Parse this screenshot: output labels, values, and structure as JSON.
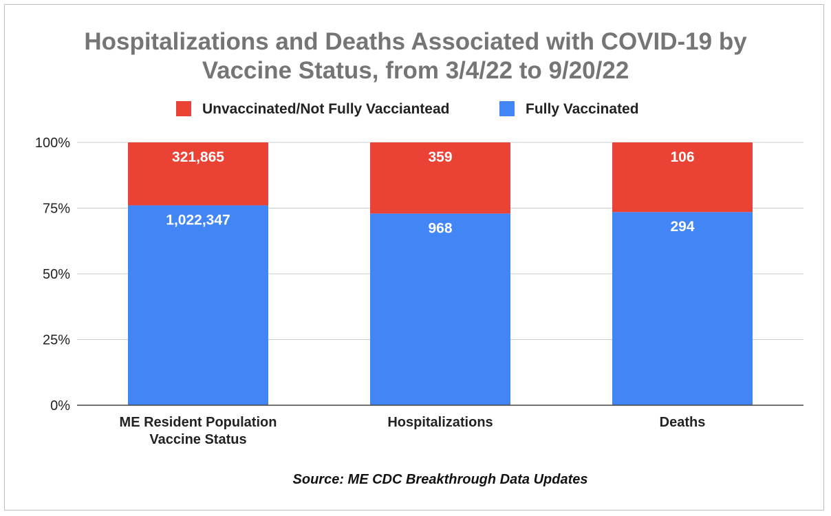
{
  "chart_data": {
    "type": "bar",
    "stacked": "percent",
    "title_lines": [
      "Hospitalizations and Deaths Associated with COVID-19 by",
      "Vaccine Status, from 3/4/22 to 9/20/22"
    ],
    "categories": [
      [
        "ME Resident Population",
        "Vaccine Status"
      ],
      [
        "Hospitalizations"
      ],
      [
        "Deaths"
      ]
    ],
    "series": [
      {
        "name": "Fully Vaccinated",
        "color": "#4285f4",
        "values": [
          1022347,
          968,
          294
        ],
        "labels": [
          "1,022,347",
          "968",
          "294"
        ]
      },
      {
        "name": "Unvaccinated/Not Fully Vacciantead",
        "color": "#ea4335",
        "values": [
          321865,
          359,
          106
        ],
        "labels": [
          "321,865",
          "359",
          "106"
        ]
      }
    ],
    "legend_order": [
      1,
      0
    ],
    "legend_position": "top",
    "y_ticks": [
      "0%",
      "25%",
      "50%",
      "75%",
      "100%"
    ],
    "ylim": [
      0,
      100
    ],
    "grid": true,
    "source": "Source: ME CDC Breakthrough Data Updates"
  }
}
